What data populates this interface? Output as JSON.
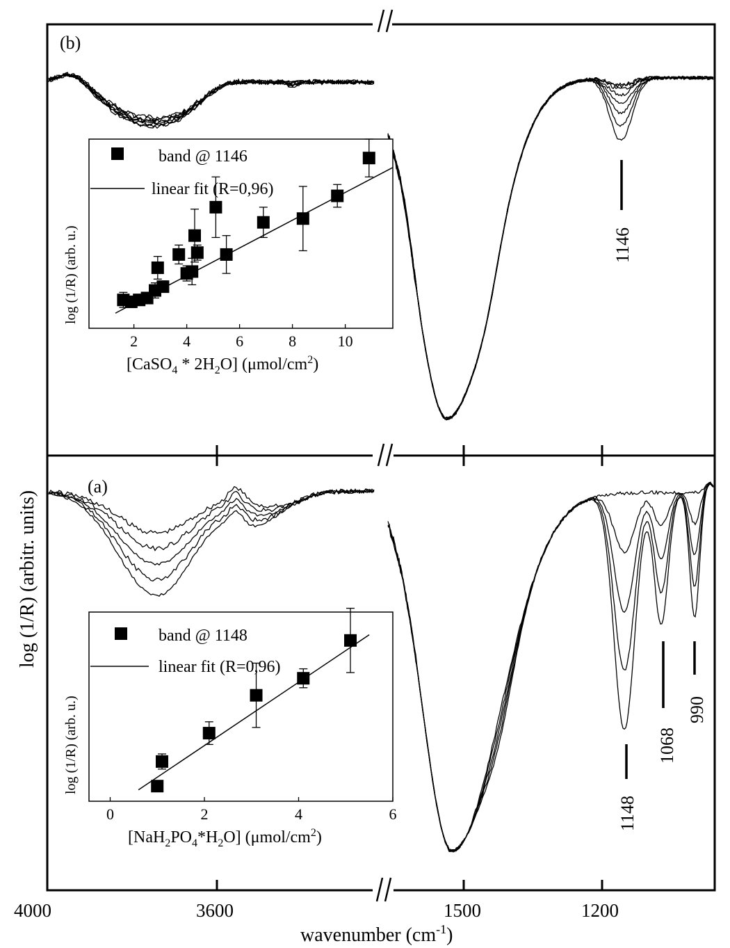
{
  "figure": {
    "xlabel": "wavenumber",
    "xlabel_unit": "(cm",
    "xlabel_exp": "-1",
    "xlabel_close": ")",
    "ylabel": "log (1/R) (arbitr. units)",
    "x_ticks": [
      "4000",
      "3600",
      "1500",
      "1200"
    ]
  },
  "chart_data": [
    {
      "type": "line",
      "panel": "top",
      "panel_label": "(b)",
      "band_label": "1146",
      "x_segments": [
        [
          3450,
          4000
        ],
        [
          1000,
          1750
        ]
      ],
      "x_reversed": true,
      "series_count": 8
    },
    {
      "type": "scatter",
      "panel": "top-inset",
      "xlabel_parts": [
        "[CaSO",
        "4",
        " * 2H",
        "2",
        "O] (μmol/cm",
        "2",
        ")"
      ],
      "ylabel": "log (1/R) (arb. u.)",
      "legend": [
        "band @ 1146",
        "linear fit (R=0,96)"
      ],
      "x_ticks": [
        "2",
        "4",
        "6",
        "8",
        "10"
      ],
      "xlim": [
        0.3,
        11.8
      ],
      "ylim": [
        0,
        1
      ],
      "points": [
        {
          "x": 1.6,
          "y": 0.15,
          "err": 0.04
        },
        {
          "x": 1.9,
          "y": 0.14,
          "err": 0.03
        },
        {
          "x": 2.2,
          "y": 0.15,
          "err": 0.03
        },
        {
          "x": 2.5,
          "y": 0.16,
          "err": 0.03
        },
        {
          "x": 2.8,
          "y": 0.2,
          "err": 0.04
        },
        {
          "x": 2.9,
          "y": 0.32,
          "err": 0.06
        },
        {
          "x": 3.1,
          "y": 0.22,
          "err": 0.03
        },
        {
          "x": 3.7,
          "y": 0.39,
          "err": 0.05
        },
        {
          "x": 4.0,
          "y": 0.29,
          "err": 0.04
        },
        {
          "x": 4.2,
          "y": 0.3,
          "err": 0.07
        },
        {
          "x": 4.3,
          "y": 0.49,
          "err": 0.14
        },
        {
          "x": 4.4,
          "y": 0.4,
          "err": 0.04
        },
        {
          "x": 5.1,
          "y": 0.64,
          "err": 0.16
        },
        {
          "x": 5.5,
          "y": 0.39,
          "err": 0.1
        },
        {
          "x": 6.9,
          "y": 0.56,
          "err": 0.08
        },
        {
          "x": 8.4,
          "y": 0.58,
          "err": 0.17
        },
        {
          "x": 9.7,
          "y": 0.7,
          "err": 0.06
        },
        {
          "x": 10.9,
          "y": 0.9,
          "err": 0.1
        }
      ],
      "fit": {
        "x": [
          1.3,
          11.8
        ],
        "y": [
          0.08,
          0.85
        ]
      }
    },
    {
      "type": "line",
      "panel": "bottom",
      "panel_label": "(a)",
      "band_labels": [
        "1148",
        "1068",
        "990"
      ],
      "x_segments": [
        [
          3450,
          4000
        ],
        [
          1000,
          1750
        ]
      ],
      "x_reversed": true,
      "series_count": 5
    },
    {
      "type": "scatter",
      "panel": "bottom-inset",
      "xlabel_parts": [
        "[NaH",
        "2",
        "PO",
        "4",
        "*H",
        "2",
        "O] (μmol/cm",
        "2",
        ")"
      ],
      "ylabel": "log (1/R) (arb. u.)",
      "legend": [
        "band @ 1148",
        "linear fit (R=0,96)"
      ],
      "x_ticks": [
        "0",
        "2",
        "4",
        "6"
      ],
      "xlim": [
        -0.45,
        6
      ],
      "ylim": [
        0,
        1
      ],
      "points": [
        {
          "x": 1.0,
          "y": 0.08,
          "err": 0.02
        },
        {
          "x": 1.1,
          "y": 0.21,
          "err": 0.04
        },
        {
          "x": 2.1,
          "y": 0.36,
          "err": 0.06
        },
        {
          "x": 3.1,
          "y": 0.56,
          "err": 0.17
        },
        {
          "x": 4.1,
          "y": 0.65,
          "err": 0.05
        },
        {
          "x": 5.1,
          "y": 0.85,
          "err": 0.17
        }
      ],
      "fit": {
        "x": [
          0.6,
          5.5
        ],
        "y": [
          0.06,
          0.88
        ]
      }
    }
  ]
}
